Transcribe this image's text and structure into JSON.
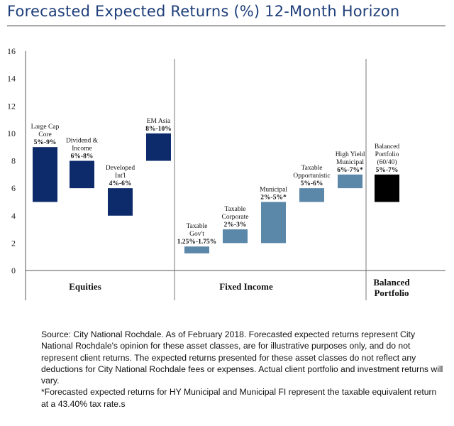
{
  "title": "Forecasted Expected Returns (%) 12-Month Horizon",
  "chart_data": {
    "type": "floating-bar",
    "ylim": [
      0,
      16
    ],
    "yticks": [
      0,
      2,
      4,
      6,
      8,
      10,
      12,
      14,
      16
    ],
    "groups": [
      {
        "label": "Equities",
        "label_lines": [
          "Equities"
        ]
      },
      {
        "label": "Fixed Income",
        "label_lines": [
          "Fixed Income"
        ]
      },
      {
        "label": "Balanced Portfolio",
        "label_lines": [
          "Balanced",
          "Portfolio"
        ]
      }
    ],
    "bars": [
      {
        "name": "Large Cap Core",
        "name_lines": [
          "Large Cap",
          "Core"
        ],
        "range_label": "5%-9%",
        "low": 5,
        "high": 9,
        "color": "#0d2b6b"
      },
      {
        "name": "Dividend & Income",
        "name_lines": [
          "Dividend &",
          "Income"
        ],
        "range_label": "6%-8%",
        "low": 6,
        "high": 8,
        "color": "#0d2b6b"
      },
      {
        "name": "Developed Int'l",
        "name_lines": [
          "Developed",
          "Int'l"
        ],
        "range_label": "4%-6%",
        "low": 4,
        "high": 6,
        "color": "#0d2b6b"
      },
      {
        "name": "EM Asia",
        "name_lines": [
          "EM Asia"
        ],
        "range_label": "8%-10%",
        "low": 8,
        "high": 10,
        "color": "#0d2b6b"
      },
      {
        "name": "Taxable Gov't",
        "name_lines": [
          "Taxable",
          "Gov't"
        ],
        "range_label": "1.25%-1.75%",
        "low": 1.25,
        "high": 1.75,
        "color": "#5b87a8"
      },
      {
        "name": "Taxable Corporate",
        "name_lines": [
          "Taxable",
          "Corporate"
        ],
        "range_label": "2%-3%",
        "low": 2,
        "high": 3,
        "color": "#5b87a8"
      },
      {
        "name": "Municipal",
        "name_lines": [
          "Municipal"
        ],
        "range_label": "2%-5%*",
        "low": 2,
        "high": 5,
        "color": "#5b87a8"
      },
      {
        "name": "Taxable Opportunistic",
        "name_lines": [
          "Taxable",
          "Opportunistic"
        ],
        "range_label": "5%-6%",
        "low": 5,
        "high": 6,
        "color": "#5b87a8"
      },
      {
        "name": "High Yield Municipal",
        "name_lines": [
          "High Yield",
          "Municipal"
        ],
        "range_label": "6%-7%*",
        "low": 6,
        "high": 7,
        "color": "#5b87a8"
      },
      {
        "name": "Balanced Portfolio (60/40)",
        "name_lines": [
          "Balanced",
          "Portfolio",
          "(60/40)"
        ],
        "range_label": "5%-7%",
        "low": 5,
        "high": 7,
        "color": "#000000"
      }
    ]
  },
  "footnote": {
    "source": "Source: City National Rochdale. As of February 2018. Forecasted expected returns represent City National Rochdale's opinion for these asset classes, are for illustrative purposes only, and do not represent client returns. The expected returns presented for these asset classes do not reflect any deductions for City National Rochdale fees or expenses. Actual client portfolio and investment returns will vary.",
    "asterisk": "*Forecasted expected returns for HY Municipal and Municipal FI represent the taxable equivalent return at a 43.40% tax rate.s"
  }
}
